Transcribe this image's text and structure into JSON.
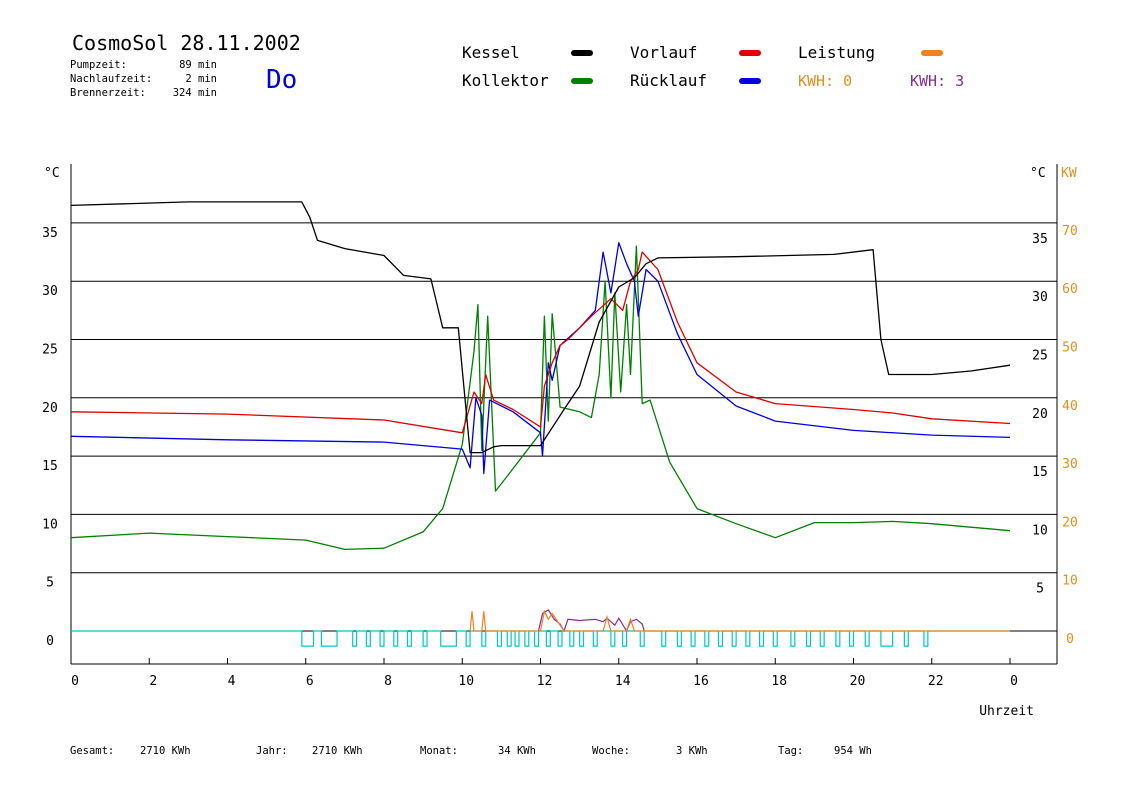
{
  "header": {
    "title": "CosmoSol 28.11.2002",
    "day": "Do",
    "stats": [
      {
        "label": "Pumpzeit:",
        "value": "89 min"
      },
      {
        "label": "Nachlaufzeit:",
        "value": "2 min"
      },
      {
        "label": "Brennerzeit:",
        "value": "324 min"
      }
    ]
  },
  "legend": {
    "items": [
      {
        "label": "Kessel",
        "color": "#000000"
      },
      {
        "label": "Vorlauf",
        "color": "#dd0000"
      },
      {
        "label": "Leistung",
        "color": "#f08020"
      },
      {
        "label": "Kollektor",
        "color": "#008000"
      },
      {
        "label": "Rücklauf",
        "color": "#0000dd"
      }
    ],
    "kwh_left": "KWH: 0",
    "kwh_right": "KWH: 3",
    "kwh_left_color": "#e09020",
    "kwh_right_color": "#803090"
  },
  "footer": {
    "items": [
      {
        "label": "Gesamt:",
        "value": "2710 KWh"
      },
      {
        "label": "Jahr:",
        "value": "2710 KWh"
      },
      {
        "label": "Monat:",
        "value": "34 KWh"
      },
      {
        "label": "Woche:",
        "value": "3 KWh"
      },
      {
        "label": "Tag:",
        "value": "954 Wh"
      }
    ]
  },
  "chart_data": {
    "type": "line",
    "xlabel": "Uhrzeit",
    "y_left_unit": "°C",
    "y_right_unit_c": "°C",
    "y_right_unit_kw": "KW",
    "x_ticks": [
      "0",
      "2",
      "4",
      "6",
      "8",
      "10",
      "12",
      "14",
      "16",
      "18",
      "20",
      "22",
      "0"
    ],
    "x_tick_values": [
      0,
      2,
      4,
      6,
      8,
      10,
      12,
      14,
      16,
      18,
      20,
      22,
      24
    ],
    "xlim": [
      0,
      24
    ],
    "ylim": [
      -3,
      40
    ],
    "y_ticks_left": [
      "0",
      "5",
      "10",
      "15",
      "20",
      "25",
      "30",
      "35"
    ],
    "y_ticks_right_c": [
      "5",
      "10",
      "15",
      "20",
      "25",
      "30",
      "35"
    ],
    "y_ticks_right_kw": [
      "0",
      "10",
      "20",
      "30",
      "40",
      "50",
      "60",
      "70"
    ],
    "grid_y": [
      0,
      5,
      10,
      15,
      20,
      25,
      30,
      35
    ],
    "series": [
      {
        "name": "Kessel",
        "color": "#000000",
        "points": [
          [
            0,
            36.5
          ],
          [
            3,
            36.8
          ],
          [
            5.9,
            36.8
          ],
          [
            6.1,
            35.5
          ],
          [
            6.3,
            33.5
          ],
          [
            7,
            32.8
          ],
          [
            8,
            32.2
          ],
          [
            8.5,
            30.5
          ],
          [
            9.2,
            30.2
          ],
          [
            9.5,
            26
          ],
          [
            9.9,
            26
          ],
          [
            10.2,
            15.3
          ],
          [
            10.5,
            15.3
          ],
          [
            10.8,
            15.8
          ],
          [
            11,
            15.9
          ],
          [
            12,
            15.9
          ],
          [
            12.6,
            19
          ],
          [
            13,
            21
          ],
          [
            13.5,
            26.5
          ],
          [
            14,
            29.5
          ],
          [
            14.4,
            30.3
          ],
          [
            14.7,
            31.5
          ],
          [
            15,
            32
          ],
          [
            17,
            32.1
          ],
          [
            19.5,
            32.3
          ],
          [
            20.5,
            32.7
          ],
          [
            20.7,
            25
          ],
          [
            20.9,
            22
          ],
          [
            22,
            22
          ],
          [
            23,
            22.3
          ],
          [
            24,
            22.8
          ]
        ]
      },
      {
        "name": "Vorlauf",
        "color": "#dd0000",
        "points": [
          [
            0,
            18.8
          ],
          [
            4,
            18.6
          ],
          [
            8,
            18.1
          ],
          [
            10,
            17
          ],
          [
            10.3,
            20.5
          ],
          [
            10.5,
            19.5
          ],
          [
            10.6,
            22
          ],
          [
            10.8,
            19.8
          ],
          [
            11.3,
            19
          ],
          [
            12,
            17.5
          ],
          [
            12.1,
            21
          ],
          [
            12.3,
            23
          ],
          [
            12.5,
            24.5
          ],
          [
            12.7,
            25
          ],
          [
            13.3,
            27
          ],
          [
            13.8,
            28.5
          ],
          [
            14.1,
            27.5
          ],
          [
            14.3,
            30
          ],
          [
            14.5,
            31
          ],
          [
            14.6,
            32.5
          ],
          [
            15,
            31
          ],
          [
            15.5,
            26.5
          ],
          [
            16,
            23
          ],
          [
            17,
            20.5
          ],
          [
            18,
            19.5
          ],
          [
            20,
            19
          ],
          [
            21,
            18.7
          ],
          [
            22,
            18.2
          ],
          [
            24,
            17.8
          ]
        ]
      },
      {
        "name": "Rücklauf",
        "color": "#0000dd",
        "points": [
          [
            0,
            16.7
          ],
          [
            4,
            16.4
          ],
          [
            8,
            16.2
          ],
          [
            10,
            15.6
          ],
          [
            10.2,
            14
          ],
          [
            10.35,
            20
          ],
          [
            10.5,
            18.5
          ],
          [
            10.55,
            13.5
          ],
          [
            10.7,
            19.8
          ],
          [
            11.3,
            18.8
          ],
          [
            12,
            17
          ],
          [
            12.05,
            15
          ],
          [
            12.2,
            23
          ],
          [
            12.3,
            21.5
          ],
          [
            12.5,
            24.5
          ],
          [
            13,
            26
          ],
          [
            13.4,
            27.5
          ],
          [
            13.6,
            32.5
          ],
          [
            13.8,
            29
          ],
          [
            14,
            33.3
          ],
          [
            14.2,
            31.5
          ],
          [
            14.4,
            30
          ],
          [
            14.5,
            27
          ],
          [
            14.7,
            31
          ],
          [
            15,
            30
          ],
          [
            15.5,
            25.5
          ],
          [
            16,
            22
          ],
          [
            17,
            19.3
          ],
          [
            18,
            18
          ],
          [
            20,
            17.2
          ],
          [
            22,
            16.8
          ],
          [
            24,
            16.6
          ]
        ]
      },
      {
        "name": "Kollektor",
        "color": "#008000",
        "points": [
          [
            0,
            8
          ],
          [
            2,
            8.4
          ],
          [
            4,
            8.1
          ],
          [
            6,
            7.8
          ],
          [
            7,
            7
          ],
          [
            8,
            7.1
          ],
          [
            9,
            8.5
          ],
          [
            9.5,
            10.5
          ],
          [
            10,
            16
          ],
          [
            10.3,
            24
          ],
          [
            10.4,
            28
          ],
          [
            10.5,
            15.5
          ],
          [
            10.65,
            27
          ],
          [
            10.85,
            12
          ],
          [
            11.2,
            13.5
          ],
          [
            12,
            17
          ],
          [
            12.1,
            27
          ],
          [
            12.2,
            18
          ],
          [
            12.3,
            27.2
          ],
          [
            12.5,
            19.2
          ],
          [
            13,
            18.8
          ],
          [
            13.3,
            18.3
          ],
          [
            13.5,
            22
          ],
          [
            13.65,
            30
          ],
          [
            13.8,
            20
          ],
          [
            13.9,
            29
          ],
          [
            14.05,
            20.5
          ],
          [
            14.2,
            28
          ],
          [
            14.3,
            22
          ],
          [
            14.45,
            33
          ],
          [
            14.6,
            19.5
          ],
          [
            14.8,
            19.8
          ],
          [
            15.3,
            14.5
          ],
          [
            16,
            10.5
          ],
          [
            17,
            9.2
          ],
          [
            18,
            8
          ],
          [
            19,
            9.3
          ],
          [
            20,
            9.3
          ],
          [
            21,
            9.4
          ],
          [
            22,
            9.2
          ],
          [
            23,
            8.9
          ],
          [
            24,
            8.6
          ]
        ]
      }
    ],
    "power_series": {
      "name": "Leistung",
      "color": "#f08020",
      "points": [
        [
          10.2,
          0
        ],
        [
          10.25,
          1.7
        ],
        [
          10.3,
          0
        ],
        [
          10.5,
          0
        ],
        [
          10.55,
          1.7
        ],
        [
          10.6,
          0
        ],
        [
          12,
          0
        ],
        [
          12.1,
          1.7
        ],
        [
          12.2,
          1
        ],
        [
          12.3,
          1.5
        ],
        [
          12.5,
          0.5
        ],
        [
          12.6,
          0
        ],
        [
          13.6,
          0
        ],
        [
          13.7,
          1.2
        ],
        [
          13.8,
          0
        ],
        [
          14.2,
          0
        ],
        [
          14.3,
          1
        ],
        [
          14.4,
          0
        ],
        [
          24,
          0
        ]
      ]
    },
    "kwh_series": {
      "name": "KWH",
      "color": "#803090",
      "points": [
        [
          11.95,
          0
        ],
        [
          12.05,
          1.5
        ],
        [
          12.2,
          1.8
        ],
        [
          12.35,
          1
        ],
        [
          12.5,
          0.6
        ],
        [
          12.6,
          0
        ],
        [
          12.7,
          1
        ],
        [
          13,
          0.9
        ],
        [
          13.4,
          1
        ],
        [
          13.6,
          0.8
        ],
        [
          13.7,
          1.1
        ],
        [
          13.9,
          0.5
        ],
        [
          14,
          1.1
        ],
        [
          14.2,
          0
        ],
        [
          14.3,
          0.8
        ],
        [
          14.45,
          1
        ],
        [
          14.6,
          0.6
        ],
        [
          14.65,
          0
        ]
      ]
    },
    "pump_series": {
      "name": "Pumpe",
      "color": "#00c8c8",
      "pulses": [
        [
          5.9,
          6.2
        ],
        [
          6.4,
          6.8
        ],
        [
          7.2,
          7.3
        ],
        [
          7.55,
          7.65
        ],
        [
          7.9,
          8
        ],
        [
          8.25,
          8.35
        ],
        [
          8.6,
          8.7
        ],
        [
          9,
          9.1
        ],
        [
          9.45,
          9.85
        ],
        [
          10.1,
          10.2
        ],
        [
          10.5,
          10.6
        ],
        [
          10.9,
          11
        ],
        [
          11.15,
          11.25
        ],
        [
          11.35,
          11.45
        ],
        [
          11.6,
          11.7
        ],
        [
          11.85,
          11.95
        ],
        [
          12.15,
          12.25
        ],
        [
          12.45,
          12.55
        ],
        [
          12.75,
          12.85
        ],
        [
          13,
          13.1
        ],
        [
          13.35,
          13.45
        ],
        [
          13.8,
          13.9
        ],
        [
          14.1,
          14.2
        ],
        [
          14.55,
          14.65
        ],
        [
          15.1,
          15.2
        ],
        [
          15.5,
          15.6
        ],
        [
          15.85,
          15.95
        ],
        [
          16.2,
          16.3
        ],
        [
          16.55,
          16.65
        ],
        [
          16.9,
          17
        ],
        [
          17.25,
          17.35
        ],
        [
          17.6,
          17.7
        ],
        [
          17.95,
          18.05
        ],
        [
          18.4,
          18.5
        ],
        [
          18.8,
          18.9
        ],
        [
          19.15,
          19.25
        ],
        [
          19.55,
          19.65
        ],
        [
          19.9,
          20
        ],
        [
          20.3,
          20.4
        ],
        [
          20.7,
          21
        ],
        [
          21.3,
          21.4
        ],
        [
          21.8,
          21.9
        ]
      ],
      "low": -1.3
    }
  }
}
